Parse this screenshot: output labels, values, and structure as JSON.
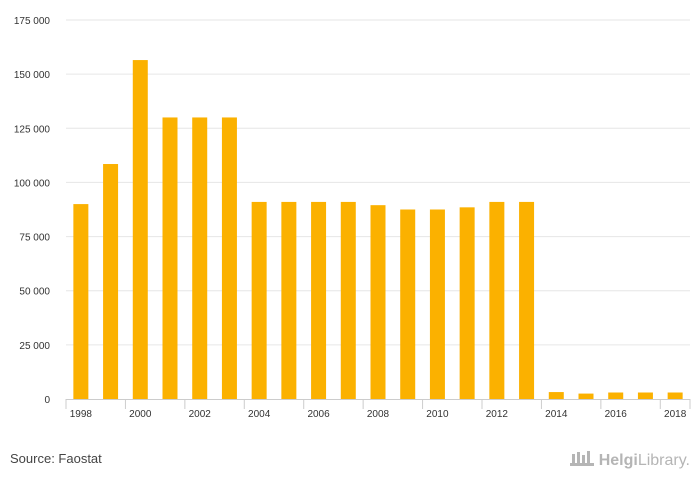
{
  "chart_data": {
    "type": "bar",
    "categories": [
      "1998",
      "1999",
      "2000",
      "2001",
      "2002",
      "2003",
      "2004",
      "2005",
      "2006",
      "2007",
      "2008",
      "2009",
      "2010",
      "2011",
      "2012",
      "2013",
      "2014",
      "2015",
      "2016",
      "2017",
      "2018"
    ],
    "values": [
      90000,
      108500,
      156500,
      130000,
      130000,
      130000,
      91000,
      91000,
      91000,
      91000,
      89500,
      87500,
      87500,
      88500,
      91000,
      91000,
      3200,
      2500,
      3000,
      3000,
      3000
    ],
    "x_tick_labels": [
      "1998",
      "2000",
      "2002",
      "2004",
      "2006",
      "2008",
      "2010",
      "2012",
      "2014",
      "2016",
      "2018"
    ],
    "y_tick_labels": [
      "0",
      "25 000",
      "50 000",
      "75 000",
      "100 000",
      "125 000",
      "150 000",
      "175 000"
    ],
    "y_ticks": [
      0,
      25000,
      50000,
      75000,
      100000,
      125000,
      150000,
      175000
    ],
    "ylim": [
      0,
      175000
    ],
    "title": "",
    "xlabel": "",
    "ylabel": "",
    "grid": true,
    "bar_color": "#fbb100",
    "grid_color": "#e6e6e6"
  },
  "footer": {
    "source": "Source: Faostat",
    "brand_part1": "Helgi",
    "brand_part2": "Library."
  }
}
